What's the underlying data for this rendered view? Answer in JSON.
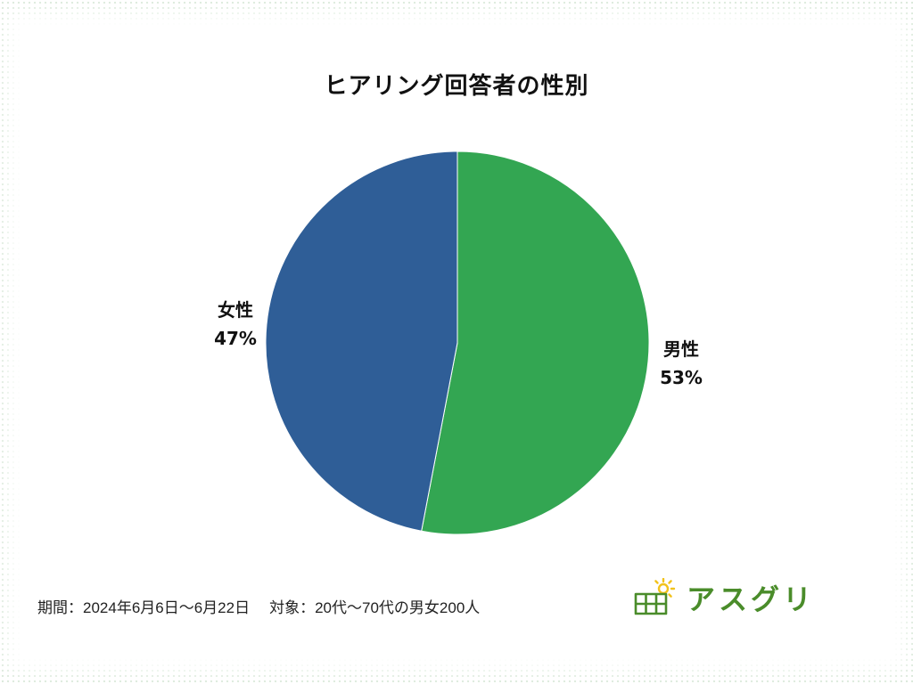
{
  "title": "ヒアリング回答者の性別",
  "chart_data": {
    "type": "pie",
    "title": "ヒアリング回答者の性別",
    "start_angle": "12 o'clock",
    "direction": "clockwise",
    "slices": [
      {
        "label": "男性",
        "value": 53,
        "value_label": "53%",
        "color": "#33a652"
      },
      {
        "label": "女性",
        "value": 47,
        "value_label": "47%",
        "color": "#2f5e97"
      }
    ]
  },
  "footer": {
    "period": "期間：2024年6月6日〜6月22日",
    "target": "対象：20代〜70代の男女200人"
  },
  "logo": {
    "text": "アスグリ",
    "icon": "solar-panel-sun-icon",
    "color": "#4a8c2a",
    "sun_color": "#f2c21b"
  }
}
